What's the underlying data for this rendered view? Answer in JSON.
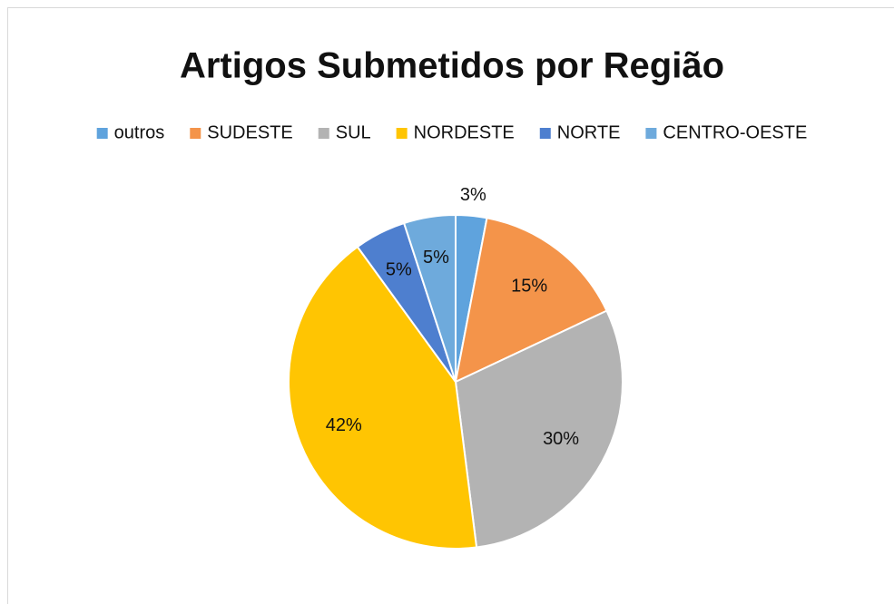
{
  "chart_data": {
    "type": "pie",
    "title": "Artigos Submetidos por Região",
    "categories": [
      "outros",
      "SUDESTE",
      "SUL",
      "NORDESTE",
      "NORTE",
      "CENTRO-OESTE"
    ],
    "values": [
      3,
      15,
      30,
      42,
      5,
      5
    ],
    "value_labels": [
      "3%",
      "15%",
      "30%",
      "42%",
      "5%",
      "5%"
    ],
    "colors": [
      "#5fa3dd",
      "#f4944a",
      "#b3b3b3",
      "#ffc502",
      "#4e7fcf",
      "#6eaadc"
    ],
    "legend": "top"
  }
}
